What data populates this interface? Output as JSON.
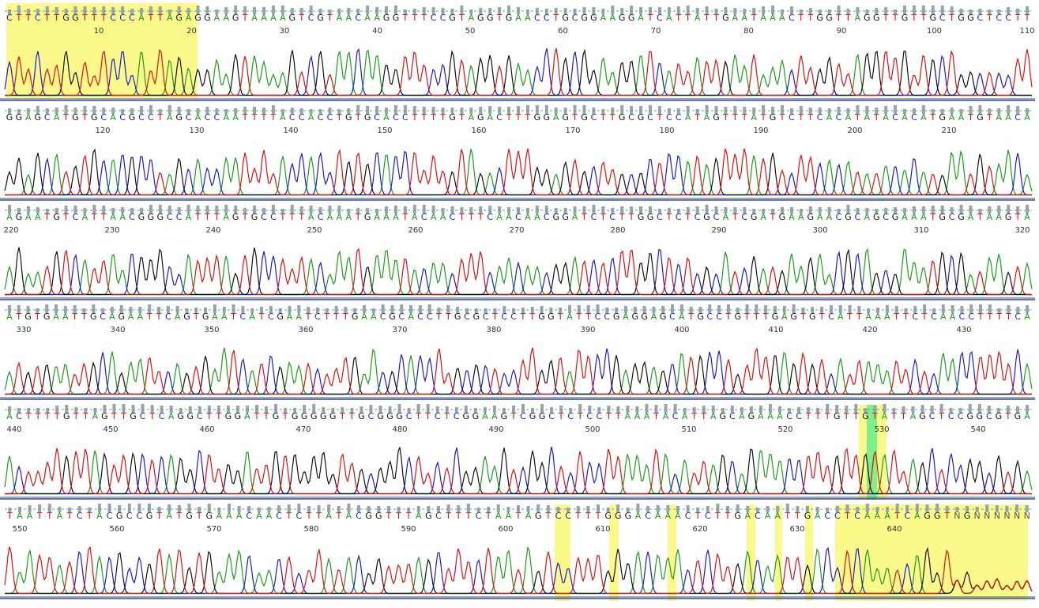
{
  "rows": [
    {
      "sequence": "CTTCTTGGTTTCCCATTAGAGGAAGTAAAAGTCGTAACAAGGTTTCCGTAGGTGAACCTGCGGAAGGATCATTATTGAATAAACTTGGTTAGGTTGTTGCTGGCTCCTT",
      "ticks": [
        10,
        20,
        30,
        40,
        50,
        60,
        70,
        80,
        90,
        100,
        110
      ]
    },
    {
      "sequence": "GGAGCATGTGCACGCCTAGCACCAATTTTACCACCTGTGCACCTTTTGTAGACTTTGGAGTGCTTGCGCTCCATAGTTTATGTCTTCACATATACACATGAATGTAACA",
      "ticks": [
        120,
        130,
        140,
        150,
        160,
        170,
        180,
        190,
        200,
        210
      ]
    },
    {
      "sequence": "AGAATGTCATTAACGGGCCATTTAGTGCCTTTACAAATGAAATACAACTTTCAACAACGGATCTCTTGGCTCTCGCATCGATGAAGAACGCAGCGAAATGCGATAAGTA",
      "ticks": [
        220,
        230,
        240,
        250,
        260,
        270,
        280,
        290,
        300,
        310,
        320
      ]
    },
    {
      "sequence": "ATGTGAATTGCAGAATTCAGTGAATCATCGAATCTTTGAACGCACCTTGCGCTCCTTGGTATTCCGAGGAGCATGCCTGTTTGAGTGTCATTAAATTCTCAACCTTTTCA",
      "ticks": [
        330,
        340,
        350,
        360,
        370,
        380,
        390,
        400,
        410,
        420,
        430
      ]
    },
    {
      "sequence": "ACTTTTGTTAGTTGCTCAGGCTTGGATTGTGGGGGTTGCGGGCTTCTCGGAAGTCGGCTCTCCTTAAATACATTAGCAGAAACCTTTGTTGTATTAGCTCCGGCGTGA",
      "ticks": [
        440,
        450,
        460,
        470,
        480,
        490,
        500,
        510,
        520,
        530,
        540
      ]
    },
    {
      "sequence": "TAATTATCTACGCCGTATGTGAAACAACTCTTATACGGTTTAGCTTTCTAATAGTCCTTTGGGACAAACTCTTGACAATTGACCTCAAATCAGGTNGNNNNNN",
      "ticks": [
        550,
        560,
        570,
        580,
        590,
        600,
        610,
        620,
        630,
        640
      ]
    }
  ]
}
